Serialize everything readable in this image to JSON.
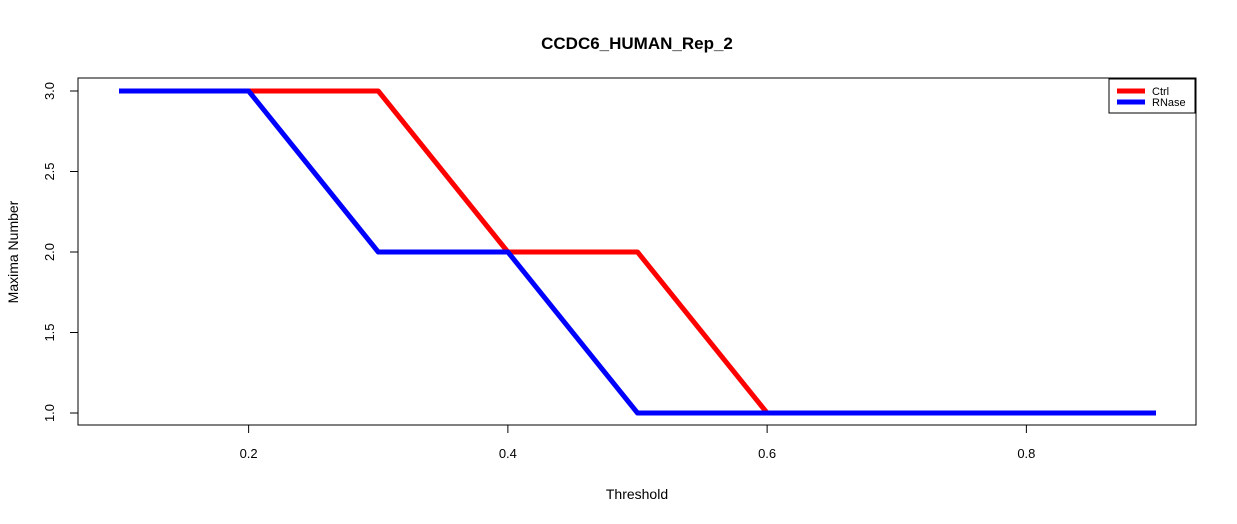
{
  "chart_data": {
    "type": "line",
    "title": "CCDC6_HUMAN_Rep_2",
    "xlabel": "Threshold",
    "ylabel": "Maxima Number",
    "xlim": [
      0.1,
      0.9
    ],
    "ylim": [
      1.0,
      3.0
    ],
    "xticks": [
      "0.2",
      "0.4",
      "0.6",
      "0.8"
    ],
    "yticks": [
      "1.0",
      "1.5",
      "2.0",
      "2.5",
      "3.0"
    ],
    "grid": false,
    "legend_position": "top-right",
    "x": [
      0.1,
      0.2,
      0.3,
      0.4,
      0.5,
      0.6,
      0.7,
      0.8,
      0.9
    ],
    "series": [
      {
        "name": "Ctrl",
        "color": "#ff0000",
        "values": [
          3,
          3,
          3,
          2,
          2,
          1,
          1,
          1,
          1
        ]
      },
      {
        "name": "RNase",
        "color": "#0000ff",
        "values": [
          3,
          3,
          2,
          2,
          1,
          1,
          1,
          1,
          1
        ]
      }
    ]
  }
}
